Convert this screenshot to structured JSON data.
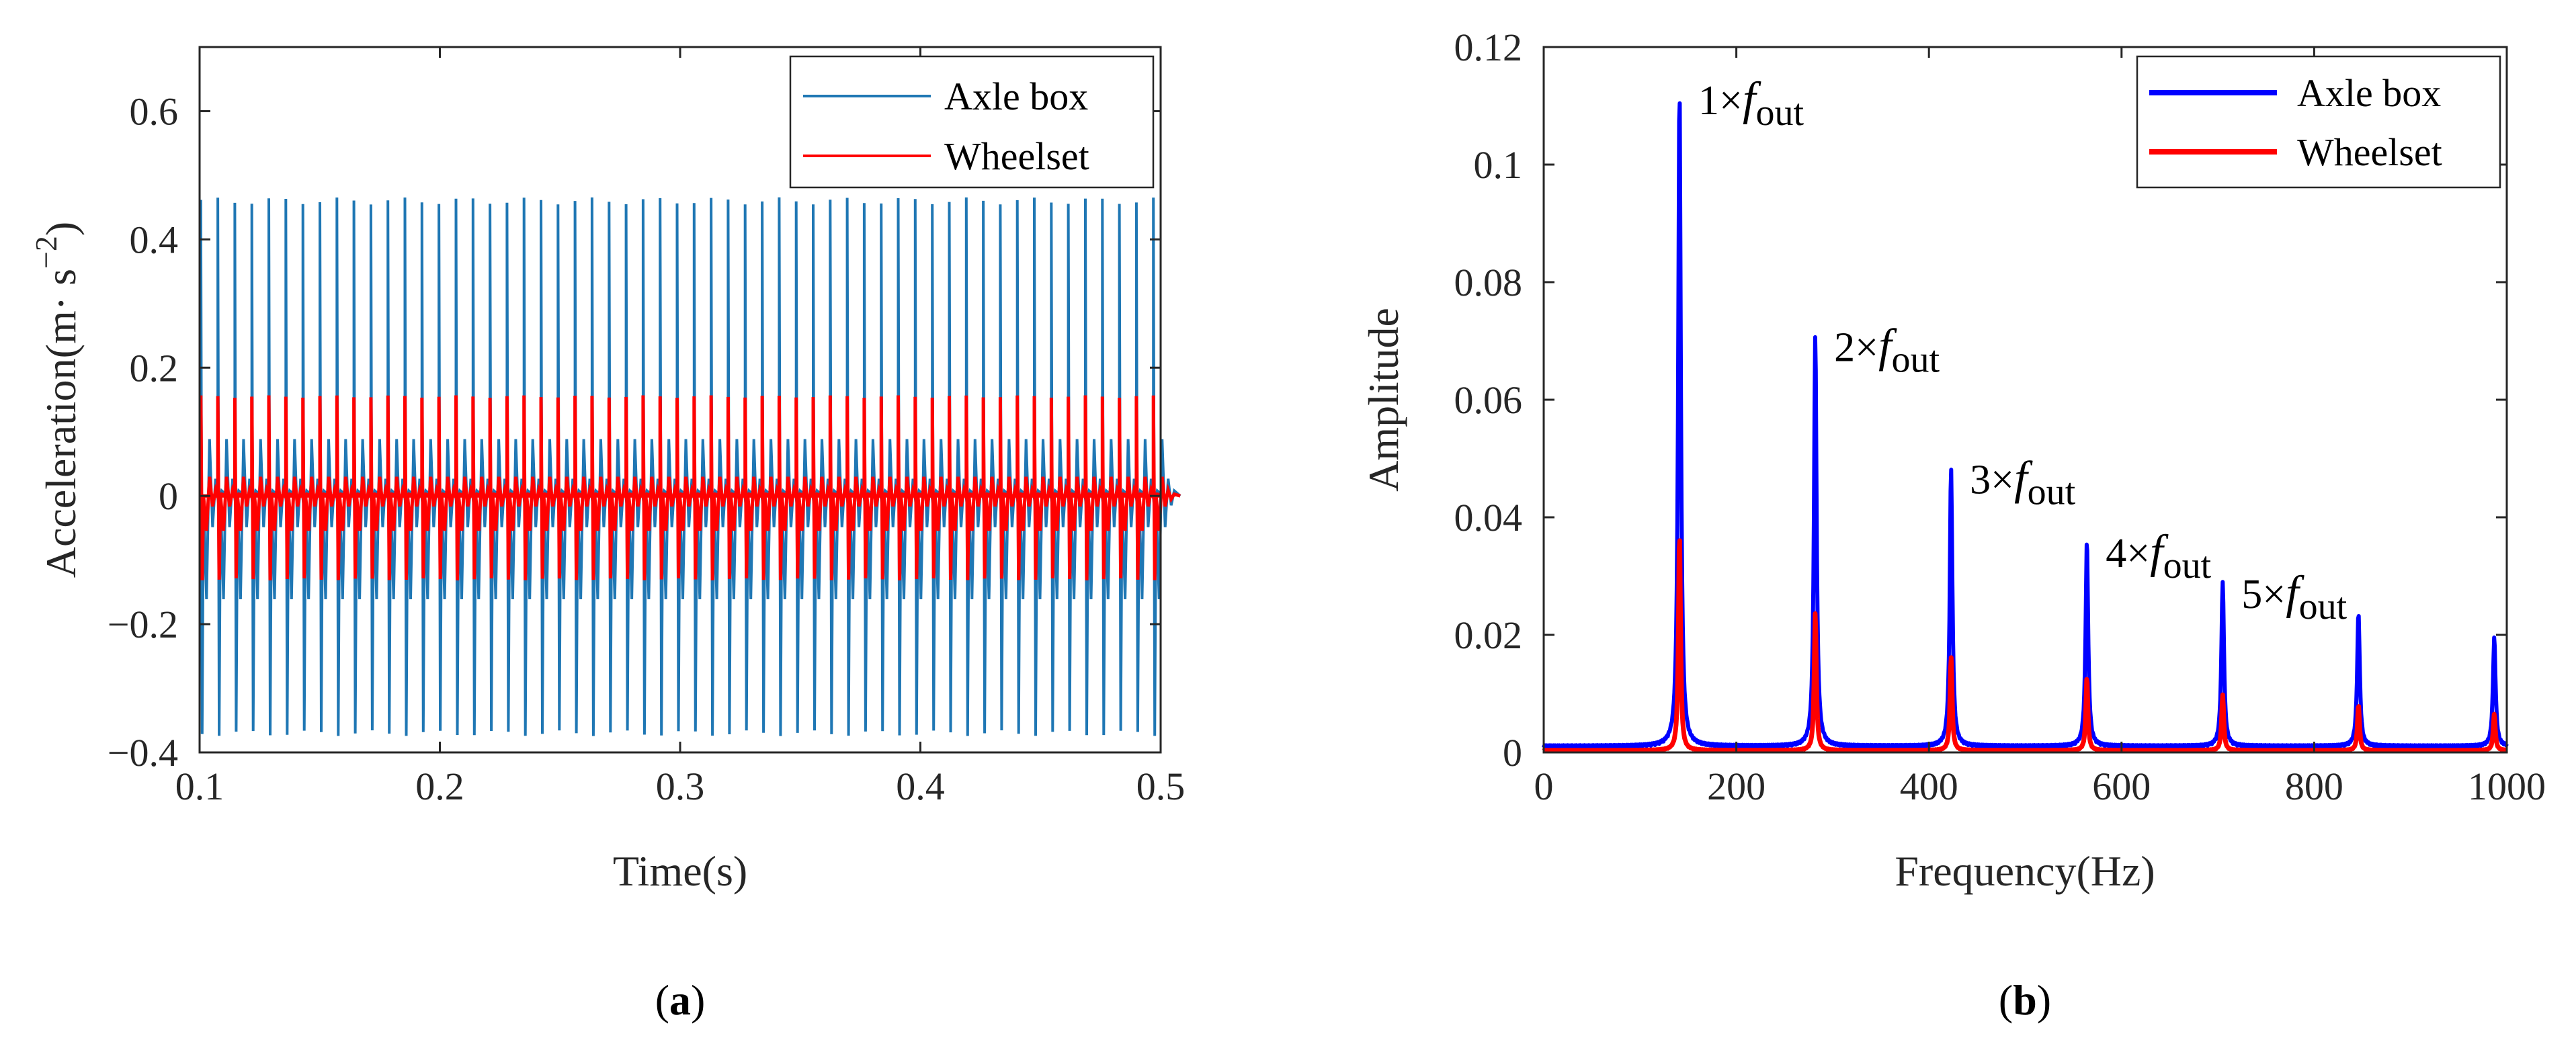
{
  "chart_data": [
    {
      "type": "line",
      "panel": "(a)",
      "panel_letter": "a",
      "xlabel": "Time(s)",
      "ylabel": "Acceleration(m· s",
      "ylabel_exp": "−2",
      "ylabel_close": ")",
      "xlim": [
        0.1,
        0.5
      ],
      "ylim": [
        -0.4,
        0.7
      ],
      "xticks": [
        0.1,
        0.2,
        0.3,
        0.4,
        0.5
      ],
      "xtick_labels": [
        "0.1",
        "0.2",
        "0.3",
        "0.4",
        "0.5"
      ],
      "yticks": [
        -0.4,
        -0.2,
        0,
        0.2,
        0.4,
        0.6
      ],
      "ytick_labels": [
        "−0.4",
        "−0.2",
        "0",
        "0.2",
        "0.4",
        "0.6"
      ],
      "impulse_period_s": 0.00708,
      "series": [
        {
          "name": "Axle box",
          "color": "#1f77b4",
          "peak_max": 0.46,
          "peak_min": -0.37
        },
        {
          "name": "Wheelset",
          "color": "#ff0000",
          "peak_max": 0.155,
          "peak_min": -0.13
        }
      ],
      "legend": {
        "position": "top-right",
        "entries": [
          "Axle box",
          "Wheelset"
        ]
      }
    },
    {
      "type": "line",
      "panel": "(b)",
      "panel_letter": "b",
      "xlabel": "Frequency(Hz)",
      "ylabel": "Amplitude",
      "xlim": [
        0,
        1000
      ],
      "ylim": [
        0,
        0.12
      ],
      "xticks": [
        0,
        200,
        400,
        600,
        800,
        1000
      ],
      "xtick_labels": [
        "0",
        "200",
        "400",
        "600",
        "800",
        "1000"
      ],
      "yticks": [
        0,
        0.02,
        0.04,
        0.06,
        0.08,
        0.1,
        0.12
      ],
      "ytick_labels": [
        "0",
        "0.02",
        "0.04",
        "0.06",
        "0.08",
        "0.1",
        "0.12"
      ],
      "series": [
        {
          "name": "Axle box",
          "color": "#0000ff",
          "peak_freqs": [
            141,
            282,
            423,
            564,
            705,
            846,
            987
          ],
          "peak_amps": [
            0.112,
            0.07,
            0.0475,
            0.035,
            0.028,
            0.0228,
            0.0185
          ]
        },
        {
          "name": "Wheelset",
          "color": "#ff0000",
          "peak_freqs": [
            141,
            282,
            423,
            564,
            705,
            846,
            987
          ],
          "peak_amps": [
            0.037,
            0.0235,
            0.016,
            0.0125,
            0.0095,
            0.0078,
            0.0062
          ]
        }
      ],
      "annotations": [
        {
          "mult": "1×",
          "f": "f",
          "sub": "out",
          "x": 141,
          "y": 0.112
        },
        {
          "mult": "2×",
          "f": "f",
          "sub": "out",
          "x": 282,
          "y": 0.07
        },
        {
          "mult": "3×",
          "f": "f",
          "sub": "out",
          "x": 423,
          "y": 0.0475
        },
        {
          "mult": "4×",
          "f": "f",
          "sub": "out",
          "x": 564,
          "y": 0.035
        },
        {
          "mult": "5×",
          "f": "f",
          "sub": "out",
          "x": 705,
          "y": 0.028
        }
      ],
      "legend": {
        "position": "top-right",
        "entries": [
          "Axle box",
          "Wheelset"
        ]
      }
    }
  ]
}
